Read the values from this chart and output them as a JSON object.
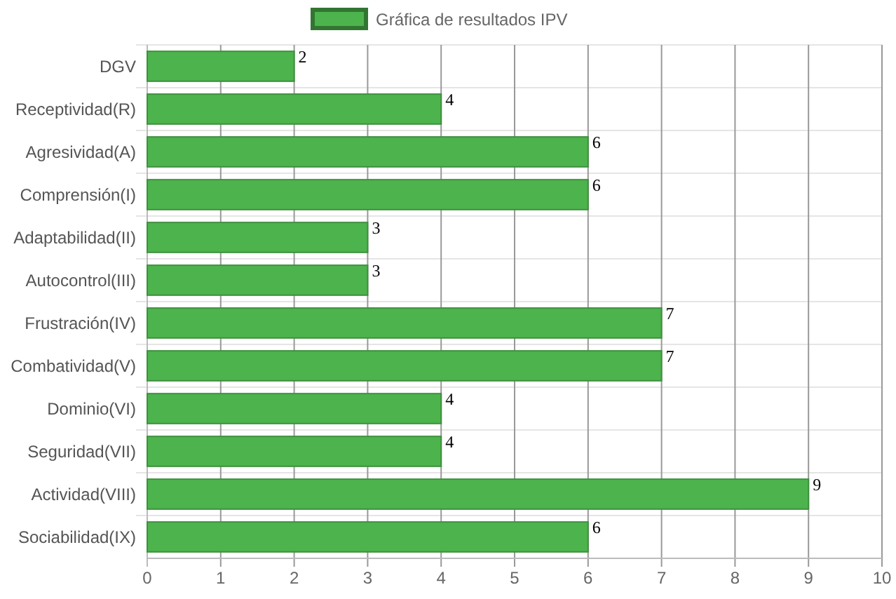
{
  "chart_data": {
    "type": "bar",
    "orientation": "horizontal",
    "categories": [
      "DGV",
      "Receptividad(R)",
      "Agresividad(A)",
      "Comprensión(I)",
      "Adaptabilidad(II)",
      "Autocontrol(III)",
      "Frustración(IV)",
      "Combatividad(V)",
      "Dominio(VI)",
      "Seguridad(VII)",
      "Actividad(VIII)",
      "Sociabilidad(IX)"
    ],
    "series": [
      {
        "name": "Gráfica de resultados IPV",
        "color": "#4db34d",
        "values": [
          2,
          4,
          6,
          6,
          3,
          3,
          7,
          7,
          4,
          4,
          9,
          6
        ]
      }
    ],
    "xlim": [
      0,
      10
    ],
    "xticks": [
      0,
      1,
      2,
      3,
      4,
      5,
      6,
      7,
      8,
      9,
      10
    ],
    "grid": true,
    "legend": "top",
    "data_labels": true
  }
}
